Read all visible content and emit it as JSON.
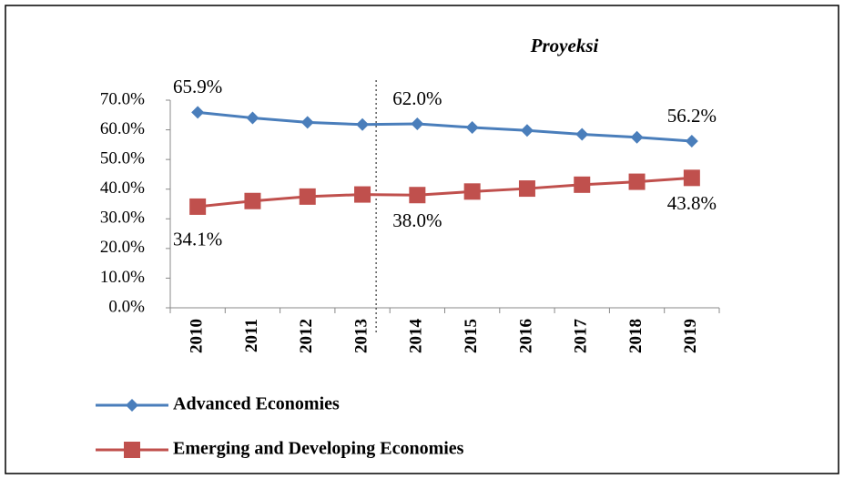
{
  "chart_data": {
    "type": "line",
    "annotations": [
      "Proyeksi"
    ],
    "categories": [
      "2010",
      "2011",
      "2012",
      "2013",
      "2014",
      "2015",
      "2016",
      "2017",
      "2018",
      "2019"
    ],
    "series": [
      {
        "name": "Advanced Economies",
        "color": "#4a7ebb",
        "marker": "diamond",
        "values": [
          65.9,
          64.0,
          62.5,
          61.8,
          62.0,
          60.8,
          59.8,
          58.5,
          57.5,
          56.2
        ],
        "value_labels": [
          "65.9%",
          null,
          null,
          null,
          "62.0%",
          null,
          null,
          null,
          null,
          "56.2%"
        ]
      },
      {
        "name": "Emerging and Developing Economies",
        "color": "#c0504d",
        "marker": "square",
        "values": [
          34.1,
          36.0,
          37.5,
          38.2,
          38.0,
          39.2,
          40.2,
          41.5,
          42.5,
          43.8
        ],
        "value_labels": [
          "34.1%",
          null,
          null,
          null,
          "38.0%",
          null,
          null,
          null,
          null,
          "43.8%"
        ]
      }
    ],
    "ylim": [
      0,
      70
    ],
    "yticks": [
      {
        "value": 0,
        "label": "0.0%"
      },
      {
        "value": 10,
        "label": "10.0%"
      },
      {
        "value": 20,
        "label": "20.0%"
      },
      {
        "value": 30,
        "label": "30.0%"
      },
      {
        "value": 40,
        "label": "40.0%"
      },
      {
        "value": 50,
        "label": "50.0%"
      },
      {
        "value": 60,
        "label": "60.0%"
      },
      {
        "value": 70,
        "label": "70.0%"
      }
    ],
    "grid": false,
    "legend": "bottom"
  }
}
